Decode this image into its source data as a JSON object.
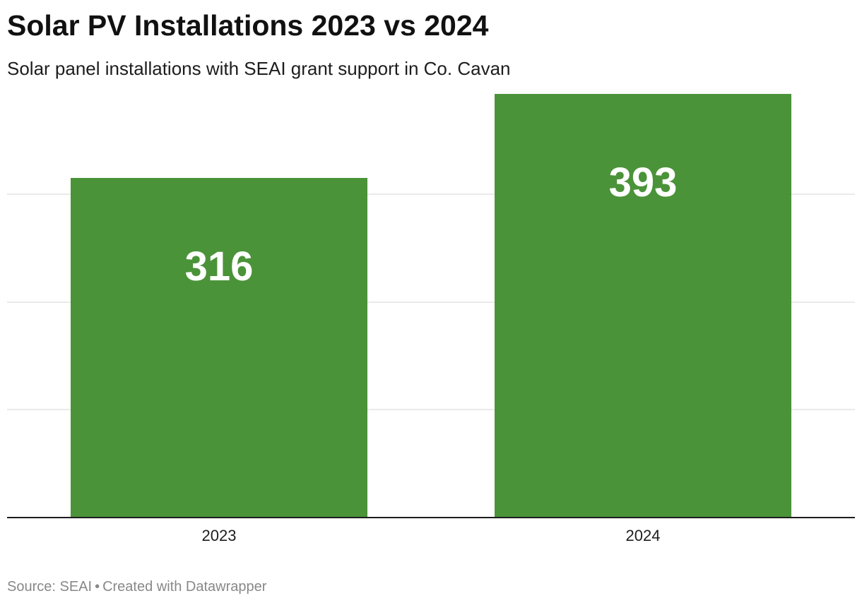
{
  "title": "Solar PV Installations 2023 vs 2024",
  "subtitle": "Solar panel installations with SEAI grant support in Co. Cavan",
  "footer": {
    "source": "Source: SEAI",
    "separator": "•",
    "credit": "Created with Datawrapper"
  },
  "colors": {
    "bar": "#4b9339",
    "grid": "#e3e3e3",
    "baseline": "#1d1d1d",
    "value_label": "#ffffff"
  },
  "chart_data": {
    "type": "bar",
    "categories": [
      "2023",
      "2024"
    ],
    "values": [
      316,
      393
    ],
    "title": "Solar PV Installations 2023 vs 2024",
    "xlabel": "",
    "ylabel": "",
    "ylim": [
      0,
      400
    ],
    "gridlines": [
      100,
      200,
      300
    ],
    "grid": true,
    "value_labels": true,
    "y_tick_labels": false
  }
}
